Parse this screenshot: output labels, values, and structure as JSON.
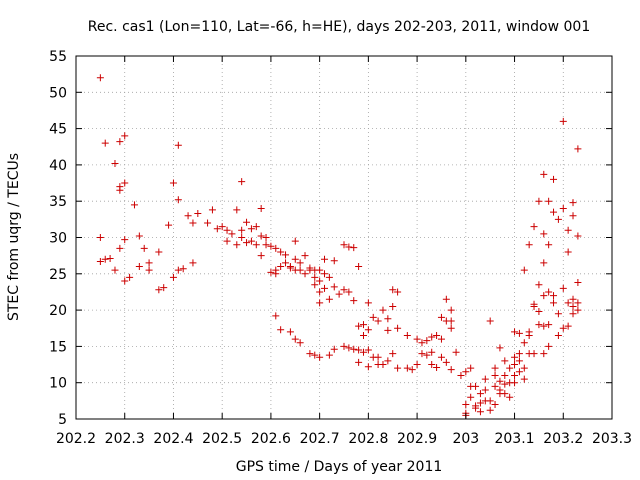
{
  "chart_data": {
    "type": "scatter",
    "title": "Rec. cas1 (Lon=110, Lat=-66, h=HE), days 202-203, 2011, window 001",
    "xlabel": "GPS time / Days of year 2011",
    "ylabel": "STEC from uqrg / TECUs",
    "xlim": [
      202.2,
      203.3
    ],
    "ylim": [
      5,
      55
    ],
    "xticks": [
      202.2,
      202.3,
      202.4,
      202.5,
      202.6,
      202.7,
      202.8,
      202.9,
      203.0,
      203.1,
      203.2,
      203.3
    ],
    "xtick_labels": [
      "202.2",
      "202.3",
      "202.4",
      "202.5",
      "202.6",
      "202.7",
      "202.8",
      "202.9",
      "203",
      "203.1",
      "203.2",
      "203.3"
    ],
    "yticks": [
      5,
      10,
      15,
      20,
      25,
      30,
      35,
      40,
      45,
      50,
      55
    ],
    "ytick_labels": [
      "5",
      "10",
      "15",
      "20",
      "25",
      "30",
      "35",
      "40",
      "45",
      "50",
      "55"
    ],
    "grid": true,
    "marker": "+",
    "color": "#cc0000",
    "series": [
      {
        "name": "STEC",
        "points": [
          [
            202.25,
            52
          ],
          [
            202.26,
            43
          ],
          [
            202.28,
            40.2
          ],
          [
            202.29,
            43.2
          ],
          [
            202.3,
            44
          ],
          [
            202.29,
            37
          ],
          [
            202.29,
            36.5
          ],
          [
            202.3,
            37.5
          ],
          [
            202.32,
            34.5
          ],
          [
            202.25,
            30
          ],
          [
            202.25,
            26.7
          ],
          [
            202.26,
            27
          ],
          [
            202.27,
            27.1
          ],
          [
            202.28,
            25.5
          ],
          [
            202.29,
            28.5
          ],
          [
            202.3,
            29.7
          ],
          [
            202.3,
            24
          ],
          [
            202.31,
            24.5
          ],
          [
            202.33,
            26
          ],
          [
            202.33,
            30.2
          ],
          [
            202.34,
            28.5
          ],
          [
            202.35,
            26.5
          ],
          [
            202.35,
            25.5
          ],
          [
            202.37,
            28
          ],
          [
            202.37,
            22.8
          ],
          [
            202.38,
            23.1
          ],
          [
            202.39,
            31.7
          ],
          [
            202.4,
            37.5
          ],
          [
            202.4,
            24.5
          ],
          [
            202.41,
            42.7
          ],
          [
            202.41,
            35.2
          ],
          [
            202.41,
            25.5
          ],
          [
            202.42,
            25.7
          ],
          [
            202.43,
            33
          ],
          [
            202.44,
            32
          ],
          [
            202.44,
            26.5
          ],
          [
            202.45,
            33.3
          ],
          [
            202.47,
            32
          ],
          [
            202.48,
            33.8
          ],
          [
            202.49,
            31.2
          ],
          [
            202.5,
            31.5
          ],
          [
            202.51,
            31
          ],
          [
            202.51,
            29.5
          ],
          [
            202.52,
            30.5
          ],
          [
            202.53,
            33.8
          ],
          [
            202.53,
            29
          ],
          [
            202.54,
            37.7
          ],
          [
            202.54,
            31
          ],
          [
            202.54,
            30
          ],
          [
            202.55,
            32.1
          ],
          [
            202.55,
            29.3
          ],
          [
            202.56,
            31.2
          ],
          [
            202.56,
            29.5
          ],
          [
            202.57,
            31.5
          ],
          [
            202.57,
            29
          ],
          [
            202.58,
            34
          ],
          [
            202.58,
            30.2
          ],
          [
            202.58,
            27.5
          ],
          [
            202.59,
            30
          ],
          [
            202.59,
            29
          ],
          [
            202.6,
            28.8
          ],
          [
            202.6,
            25.2
          ],
          [
            202.61,
            28.5
          ],
          [
            202.61,
            25.5
          ],
          [
            202.61,
            25
          ],
          [
            202.62,
            28
          ],
          [
            202.62,
            26
          ],
          [
            202.63,
            27.6
          ],
          [
            202.63,
            26.5
          ],
          [
            202.64,
            26
          ],
          [
            202.64,
            25.8
          ],
          [
            202.65,
            29.5
          ],
          [
            202.65,
            27
          ],
          [
            202.65,
            25.5
          ],
          [
            202.66,
            26.5
          ],
          [
            202.66,
            25.5
          ],
          [
            202.67,
            25
          ],
          [
            202.67,
            27.5
          ],
          [
            202.68,
            25.8
          ],
          [
            202.68,
            25.5
          ],
          [
            202.69,
            25.5
          ],
          [
            202.69,
            24.5
          ],
          [
            202.69,
            23.5
          ],
          [
            202.7,
            25.5
          ],
          [
            202.7,
            24
          ],
          [
            202.7,
            22.5
          ],
          [
            202.7,
            21
          ],
          [
            202.71,
            27
          ],
          [
            202.71,
            25
          ],
          [
            202.71,
            23
          ],
          [
            202.72,
            24.5
          ],
          [
            202.72,
            21.5
          ],
          [
            202.73,
            26.8
          ],
          [
            202.73,
            23.2
          ],
          [
            202.74,
            22.2
          ],
          [
            202.75,
            29
          ],
          [
            202.75,
            22.8
          ],
          [
            202.76,
            28.7
          ],
          [
            202.76,
            22.5
          ],
          [
            202.77,
            28.6
          ],
          [
            202.77,
            21.3
          ],
          [
            202.78,
            26
          ],
          [
            202.78,
            17.8
          ],
          [
            202.79,
            16.5
          ],
          [
            202.79,
            18
          ],
          [
            202.8,
            21
          ],
          [
            202.8,
            17.3
          ],
          [
            202.81,
            19
          ],
          [
            202.82,
            18.5
          ],
          [
            202.83,
            20
          ],
          [
            202.84,
            18.8
          ],
          [
            202.84,
            17.2
          ],
          [
            202.85,
            22.8
          ],
          [
            202.85,
            20.5
          ],
          [
            202.86,
            22.5
          ],
          [
            202.86,
            17.5
          ],
          [
            202.88,
            16.5
          ],
          [
            202.9,
            16
          ],
          [
            202.91,
            15.5
          ],
          [
            202.92,
            15.8
          ],
          [
            202.93,
            16.3
          ],
          [
            202.94,
            16.5
          ],
          [
            202.95,
            19
          ],
          [
            202.95,
            16
          ],
          [
            202.96,
            21.5
          ],
          [
            202.96,
            18.5
          ],
          [
            202.97,
            17.5
          ],
          [
            202.97,
            20
          ],
          [
            202.97,
            18.5
          ],
          [
            202.61,
            19.2
          ],
          [
            202.62,
            17.3
          ],
          [
            202.64,
            17
          ],
          [
            202.65,
            16
          ],
          [
            202.66,
            15.5
          ],
          [
            202.68,
            14
          ],
          [
            202.69,
            13.8
          ],
          [
            202.7,
            13.5
          ],
          [
            202.72,
            13.8
          ],
          [
            202.73,
            14.6
          ],
          [
            202.75,
            15
          ],
          [
            202.76,
            14.8
          ],
          [
            202.77,
            14.6
          ],
          [
            202.78,
            14.5
          ],
          [
            202.79,
            14.2
          ],
          [
            202.8,
            14.5
          ],
          [
            202.81,
            13.5
          ],
          [
            202.82,
            13.5
          ],
          [
            202.83,
            12.5
          ],
          [
            202.84,
            13
          ],
          [
            202.85,
            14
          ],
          [
            202.86,
            12
          ],
          [
            202.88,
            12
          ],
          [
            202.89,
            11.8
          ],
          [
            202.9,
            12.5
          ],
          [
            202.91,
            14
          ],
          [
            202.92,
            13.8
          ],
          [
            202.93,
            14.2
          ],
          [
            202.93,
            12.5
          ],
          [
            202.94,
            12.1
          ],
          [
            202.95,
            13.5
          ],
          [
            202.96,
            12.8
          ],
          [
            202.97,
            11.8
          ],
          [
            202.98,
            14.2
          ],
          [
            202.8,
            12.2
          ],
          [
            202.82,
            12.5
          ],
          [
            202.78,
            12.8
          ],
          [
            203.0,
            7
          ],
          [
            203.0,
            5.8
          ],
          [
            203.01,
            12
          ],
          [
            203.01,
            8
          ],
          [
            203.02,
            9.5
          ],
          [
            203.02,
            6.5
          ],
          [
            203.03,
            8.5
          ],
          [
            203.03,
            7.2
          ],
          [
            203.04,
            10.5
          ],
          [
            203.04,
            9
          ],
          [
            203.05,
            7.5
          ],
          [
            203.05,
            6.2
          ],
          [
            203.05,
            18.5
          ],
          [
            203.06,
            11
          ],
          [
            203.06,
            9.5
          ],
          [
            203.07,
            14.8
          ],
          [
            203.07,
            10.2
          ],
          [
            203.07,
            8.5
          ],
          [
            203.08,
            13
          ],
          [
            203.08,
            11
          ],
          [
            203.08,
            9.8
          ],
          [
            203.09,
            12
          ],
          [
            203.09,
            10
          ],
          [
            203.1,
            17
          ],
          [
            203.1,
            13.5
          ],
          [
            203.1,
            12.5
          ],
          [
            203.1,
            11
          ],
          [
            203.11,
            16.8
          ],
          [
            203.11,
            14
          ],
          [
            203.11,
            11.5
          ],
          [
            203.12,
            25.5
          ],
          [
            203.12,
            15.5
          ],
          [
            203.12,
            10.5
          ],
          [
            203.13,
            29
          ],
          [
            203.13,
            17
          ],
          [
            203.13,
            14
          ],
          [
            203.14,
            31.5
          ],
          [
            203.14,
            20.8
          ],
          [
            203.14,
            14
          ],
          [
            203.15,
            35
          ],
          [
            203.15,
            23.5
          ],
          [
            203.15,
            18
          ],
          [
            203.16,
            38.7
          ],
          [
            203.16,
            30.5
          ],
          [
            203.16,
            26.5
          ],
          [
            203.16,
            22
          ],
          [
            203.16,
            14
          ],
          [
            203.17,
            35
          ],
          [
            203.17,
            29
          ],
          [
            203.17,
            22.5
          ],
          [
            203.17,
            18
          ],
          [
            203.18,
            38
          ],
          [
            203.18,
            33.5
          ],
          [
            203.18,
            22
          ],
          [
            203.19,
            32.5
          ],
          [
            203.19,
            19.5
          ],
          [
            203.2,
            46
          ],
          [
            203.2,
            34
          ],
          [
            203.2,
            23
          ],
          [
            203.21,
            31
          ],
          [
            203.21,
            28
          ],
          [
            203.21,
            21
          ],
          [
            203.22,
            34.8
          ],
          [
            203.22,
            33
          ],
          [
            203.22,
            21.5
          ],
          [
            203.23,
            42.2
          ],
          [
            203.23,
            30.2
          ],
          [
            203.23,
            23.8
          ],
          [
            203.23,
            21
          ],
          [
            203.21,
            17.8
          ],
          [
            203.22,
            20.5
          ],
          [
            203.19,
            16.5
          ],
          [
            203.15,
            19.8
          ],
          [
            203.16,
            17.8
          ],
          [
            203.14,
            20.5
          ],
          [
            203.13,
            16.5
          ],
          [
            203.12,
            12
          ],
          [
            203.11,
            13
          ],
          [
            203.1,
            10
          ],
          [
            203.09,
            8
          ],
          [
            203.08,
            8.5
          ],
          [
            203.07,
            9
          ],
          [
            203.06,
            7
          ],
          [
            203.04,
            7.5
          ],
          [
            203.03,
            6
          ],
          [
            203.02,
            6.8
          ],
          [
            203.01,
            9.5
          ],
          [
            203.0,
            5.5
          ],
          [
            202.99,
            11
          ],
          [
            203.0,
            11.5
          ],
          [
            203.06,
            12
          ],
          [
            203.17,
            15
          ],
          [
            203.18,
            21
          ],
          [
            203.2,
            17.5
          ],
          [
            203.22,
            19.5
          ],
          [
            203.23,
            20
          ]
        ]
      }
    ]
  }
}
